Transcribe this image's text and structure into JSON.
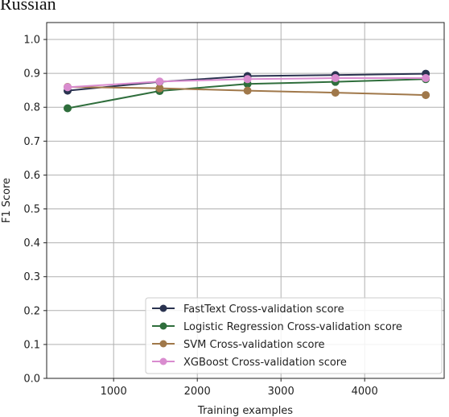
{
  "chart_data": {
    "type": "line",
    "title": "Russian",
    "xlabel": "Training examples",
    "ylabel": "F1 Score",
    "xlim": [
      200,
      4950
    ],
    "ylim": [
      0.0,
      1.05
    ],
    "xticks": [
      1000,
      2000,
      3000,
      4000
    ],
    "yticks": [
      0.0,
      0.1,
      0.2,
      0.3,
      0.4,
      0.5,
      0.6,
      0.7,
      0.8,
      0.9,
      1.0
    ],
    "grid": true,
    "legend_position": "lower-right",
    "series": [
      {
        "name": "FastText Cross-validation score",
        "color": "#2a3350",
        "x": [
          450,
          1550,
          2600,
          3650,
          4730
        ],
        "y": [
          0.849,
          0.875,
          0.892,
          0.895,
          0.899
        ]
      },
      {
        "name": "Logistic Regression Cross-validation score",
        "color": "#2f6e3c",
        "x": [
          450,
          1550,
          2600,
          3650,
          4730
        ],
        "y": [
          0.797,
          0.848,
          0.869,
          0.875,
          0.883
        ]
      },
      {
        "name": "SVM Cross-validation score",
        "color": "#a0784a",
        "x": [
          450,
          1550,
          2600,
          3650,
          4730
        ],
        "y": [
          0.86,
          0.856,
          0.849,
          0.843,
          0.836
        ]
      },
      {
        "name": "XGBoost Cross-validation score",
        "color": "#d98ccf",
        "x": [
          450,
          1550,
          2600,
          3650,
          4730
        ],
        "y": [
          0.859,
          0.876,
          0.883,
          0.886,
          0.886
        ]
      }
    ]
  }
}
